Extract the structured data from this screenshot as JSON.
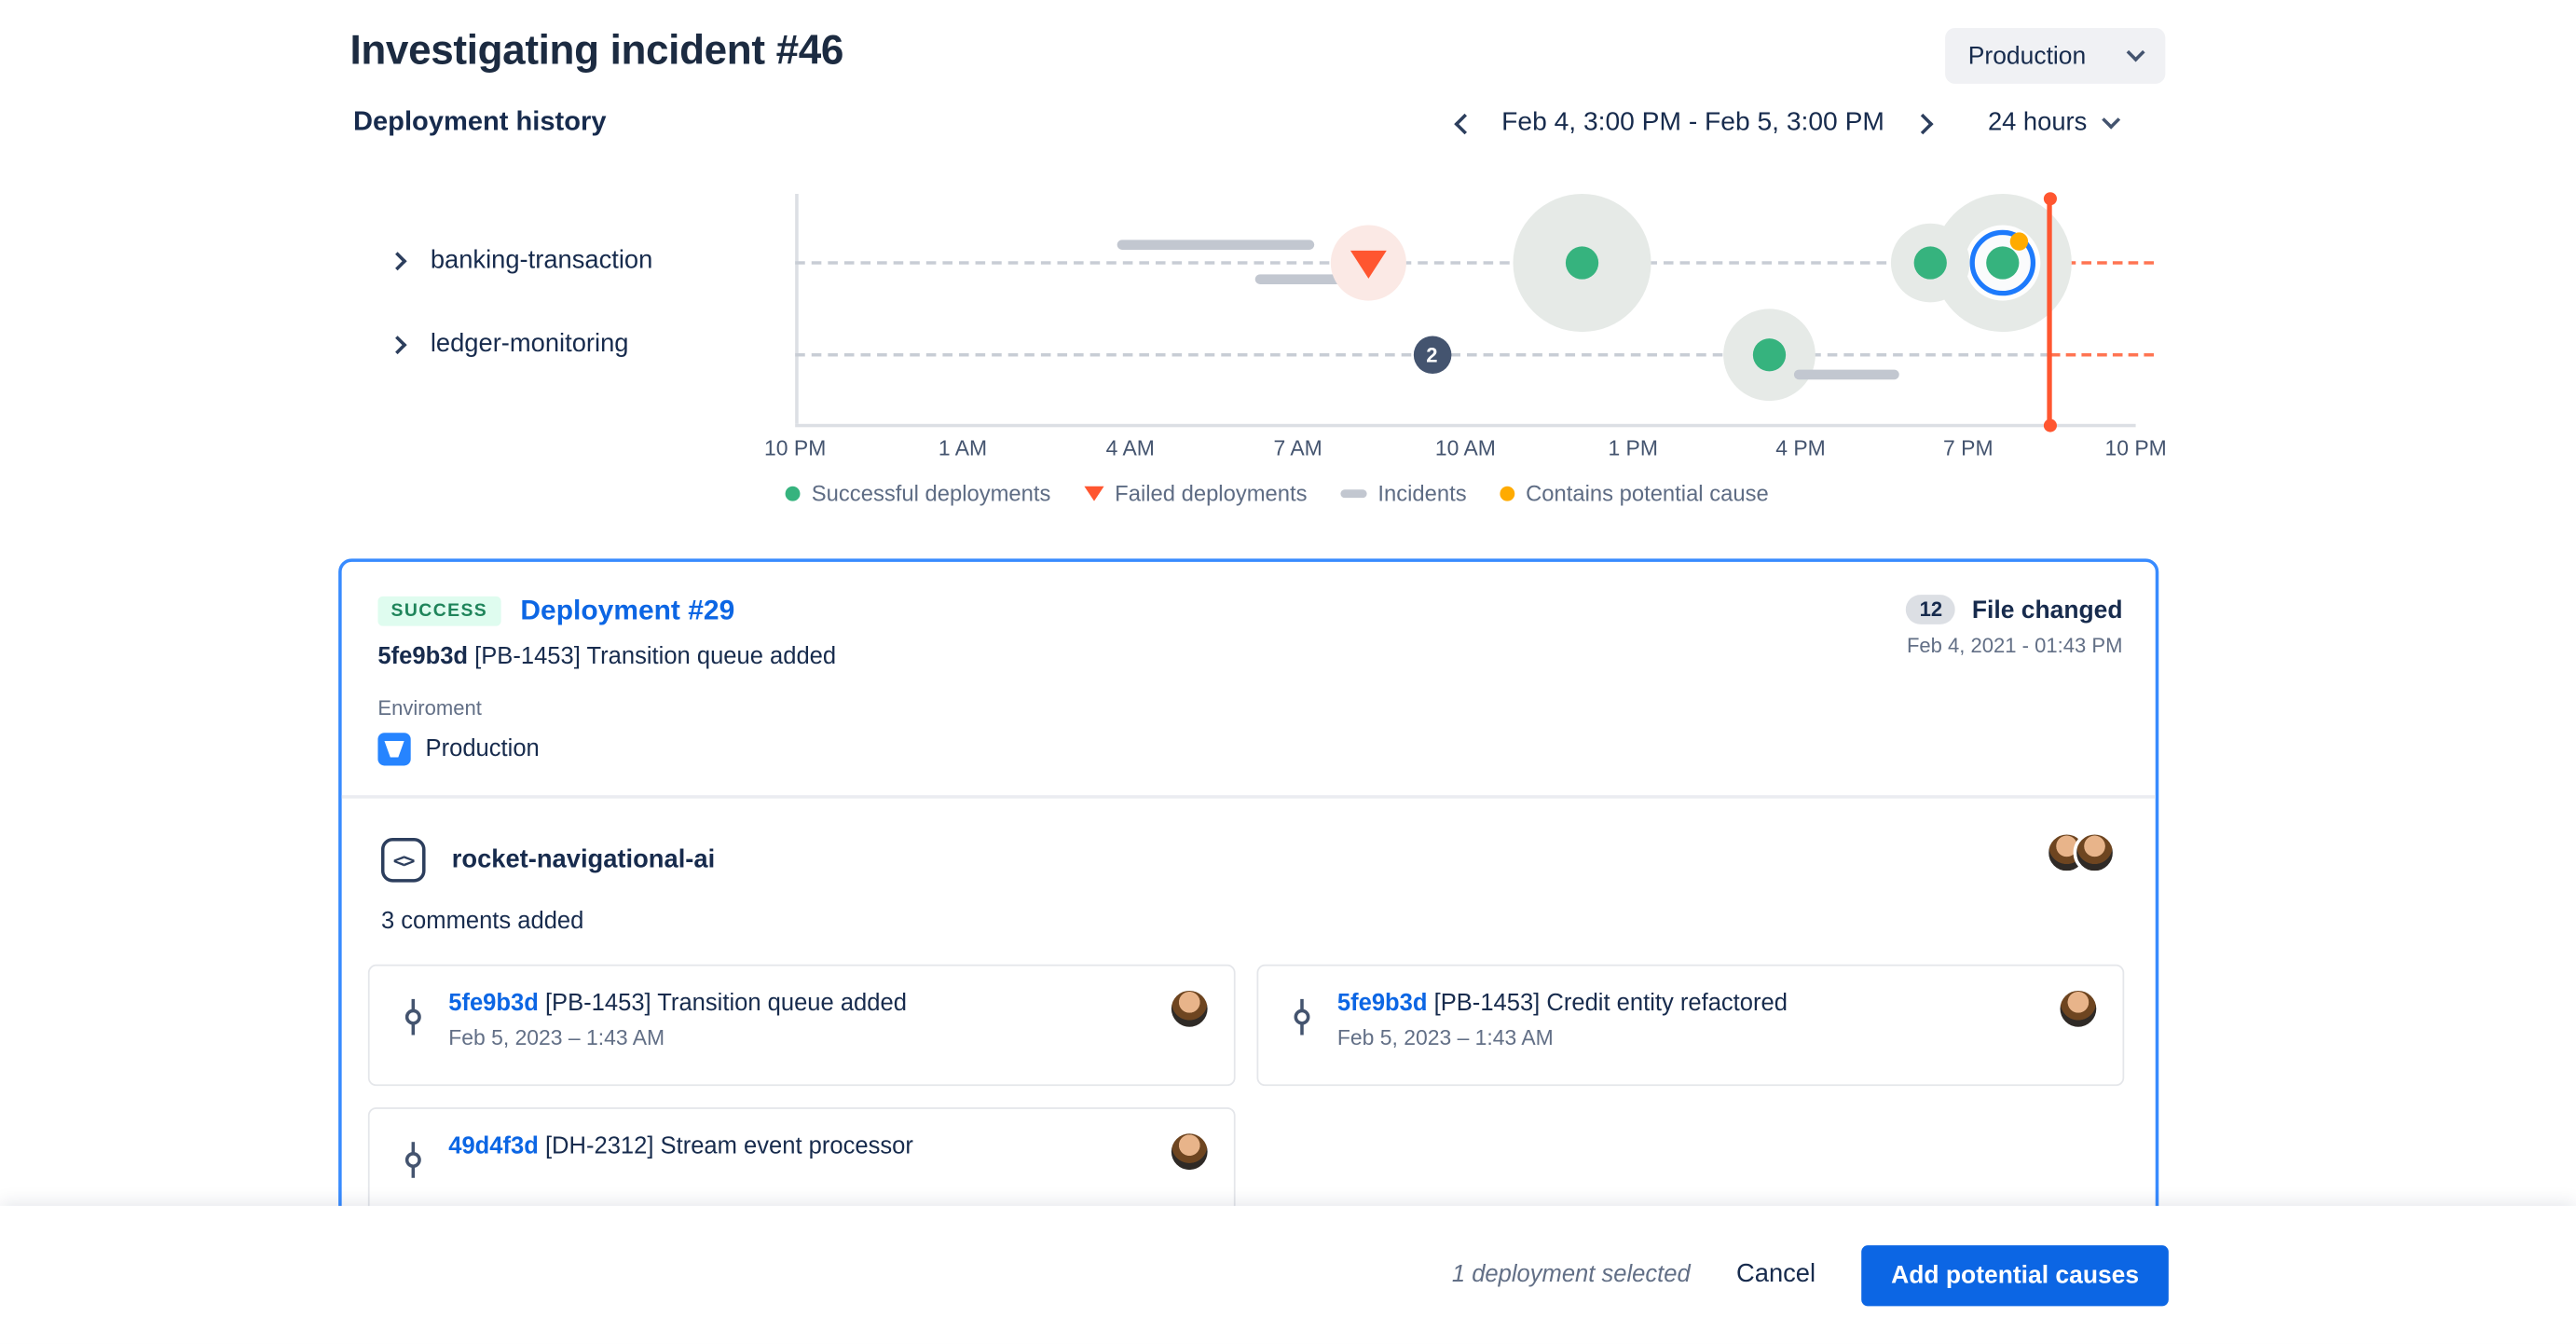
{
  "header": {
    "title": "Investigating incident #46",
    "environment": "Production"
  },
  "toolbar": {
    "section_title": "Deployment history",
    "date_range": "Feb 4, 3:00 PM - Feb 5, 3:00 PM",
    "range_window": "24 hours"
  },
  "chart": {
    "rows": [
      {
        "label": "banking-transaction"
      },
      {
        "label": "ledger-monitoring"
      }
    ],
    "x_ticks": [
      "10 PM",
      "1 AM",
      "4 AM",
      "7 AM",
      "10 AM",
      "1 PM",
      "4 PM",
      "7 PM",
      "10 PM"
    ],
    "legend": [
      {
        "type": "success",
        "label": "Successful deployments"
      },
      {
        "type": "failed",
        "label": "Failed deployments"
      },
      {
        "type": "incident",
        "label": "Incidents"
      },
      {
        "type": "cause",
        "label": "Contains potential cause"
      }
    ],
    "now_pct": 93.6,
    "markers": [
      {
        "row": 0,
        "type": "incident-bar",
        "start_pct": 24.0,
        "end_pct": 38.7,
        "offset": -11
      },
      {
        "row": 0,
        "type": "incident-bar",
        "start_pct": 34.3,
        "end_pct": 42.6,
        "offset": 10
      },
      {
        "row": 0,
        "type": "failed",
        "pct": 42.8,
        "halo": 46
      },
      {
        "row": 0,
        "type": "success",
        "pct": 58.7,
        "halo": 84
      },
      {
        "row": 0,
        "type": "selected-cause",
        "pct": 90.1,
        "halo": 84
      },
      {
        "row": 0,
        "type": "success",
        "pct": 84.7,
        "halo": 48
      },
      {
        "row": 1,
        "type": "count",
        "pct": 47.5,
        "count": "2"
      },
      {
        "row": 1,
        "type": "success",
        "pct": 72.7,
        "halo": 56
      },
      {
        "row": 1,
        "type": "incident-bar",
        "start_pct": 74.5,
        "end_pct": 82.3,
        "offset": 12
      }
    ]
  },
  "deployment": {
    "status": "SUCCESS",
    "title": "Deployment #29",
    "commit_hash": "5fe9b3d",
    "commit_message": "[PB-1453] Transition queue added",
    "files_changed_count": "12",
    "files_changed_label": "File changed",
    "timestamp": "Feb 4, 2021 - 01:43 PM",
    "environment_label": "Enviroment",
    "environment_value": "Production",
    "repository": "rocket-navigational-ai",
    "comments_summary": "3 comments added",
    "commits": [
      {
        "hash": "5fe9b3d",
        "message": "[PB-1453] Transition queue added",
        "date": "Feb 5, 2023 – 1:43 AM"
      },
      {
        "hash": "5fe9b3d",
        "message": "[PB-1453] Credit entity refactored",
        "date": "Feb 5, 2023 – 1:43 AM"
      },
      {
        "hash": "49d4f3d",
        "message": "[DH-2312] Stream event processor",
        "date": ""
      }
    ]
  },
  "footer": {
    "selection": "1 deployment selected",
    "cancel": "Cancel",
    "primary": "Add potential causes"
  },
  "colors": {
    "accent_blue": "#0C66E4",
    "selected_ring_blue": "#1D7AFC",
    "success_green": "#36B37E",
    "failed_red": "#FF5630",
    "cause_yellow": "#FFAB00",
    "incident_gray": "#C2C7D0"
  }
}
